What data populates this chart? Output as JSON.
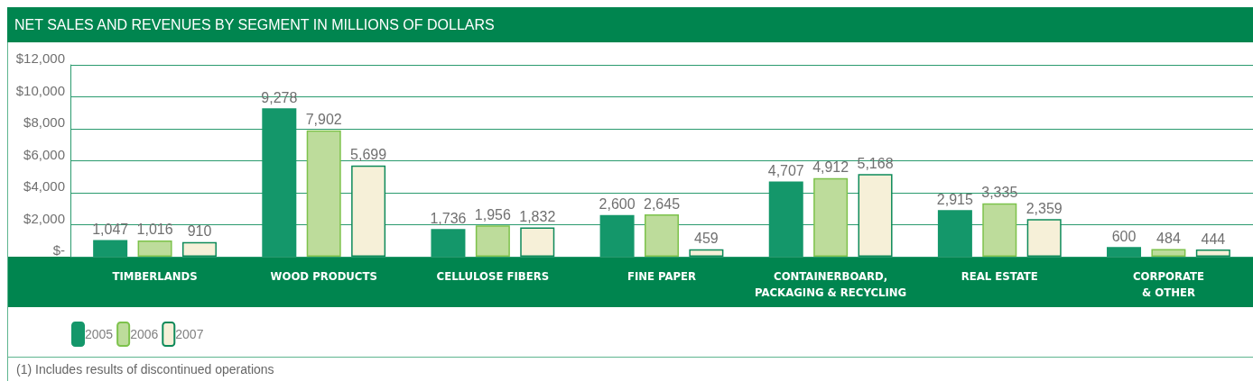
{
  "chart_data": {
    "type": "bar",
    "title": "NET SALES AND REVENUES BY SEGMENT IN MILLIONS OF DOLLARS",
    "categories": [
      "TIMBERLANDS",
      "WOOD PRODUCTS",
      "CELLULOSE FIBERS",
      "FINE PAPER",
      "CONTAINERBOARD,\nPACKAGING & RECYCLING",
      "REAL ESTATE",
      "CORPORATE\n& OTHER"
    ],
    "series": [
      {
        "name": "2005",
        "color": "#14976a",
        "values": [
          1047,
          9278,
          1736,
          2600,
          4707,
          2915,
          600
        ],
        "value_labels": [
          "1,047",
          "9,278",
          "1,736",
          "2,600",
          "4,707",
          "2,915",
          "600"
        ]
      },
      {
        "name": "2006",
        "color": "#bddc9b",
        "values": [
          1016,
          7902,
          1956,
          2645,
          4912,
          3335,
          484
        ],
        "value_labels": [
          "1,016",
          "7,902",
          "1,956",
          "2,645",
          "4,912",
          "3,335",
          "484"
        ]
      },
      {
        "name": "2007",
        "color": "#f6f0d8",
        "values": [
          910,
          5699,
          1832,
          459,
          5168,
          2359,
          444
        ],
        "value_labels": [
          "910",
          "5,699",
          "1,832",
          "459",
          "5,168",
          "2,359",
          "444"
        ]
      }
    ],
    "ylim": [
      0,
      12000
    ],
    "yticks": [
      {
        "value": 0,
        "label": "$-"
      },
      {
        "value": 2000,
        "label": "$2,000"
      },
      {
        "value": 4000,
        "label": "$4,000"
      },
      {
        "value": 6000,
        "label": "$6,000"
      },
      {
        "value": 8000,
        "label": "$8,000"
      },
      {
        "value": 10000,
        "label": "$10,000"
      },
      {
        "value": 12000,
        "label": "$12,000"
      }
    ],
    "grid": "y",
    "legend": "bottom left",
    "annotations": [
      "(1) Includes results of discontinued operations"
    ]
  }
}
